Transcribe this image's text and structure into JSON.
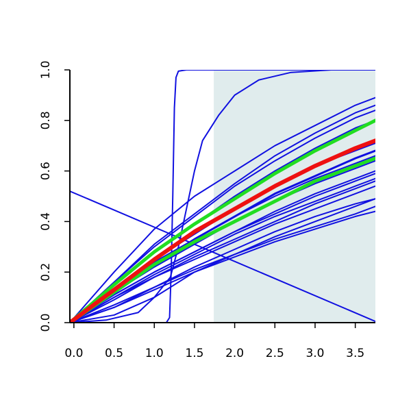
{
  "chart_data": {
    "type": "line",
    "title": "",
    "xlabel": "",
    "ylabel": "",
    "xlim": [
      -0.05,
      3.75
    ],
    "ylim": [
      0,
      1
    ],
    "x_ticks": [
      0,
      0.5,
      1,
      1.5,
      2,
      2.5,
      3,
      3.5
    ],
    "x_tick_labels": [
      "0.0",
      "0.5",
      "1.0",
      "1.5",
      "2.0",
      "2.5",
      "3.0",
      "3.5"
    ],
    "y_ticks": [
      0,
      0.2,
      0.4,
      0.6,
      0.8,
      1
    ],
    "y_tick_labels": [
      "0.0",
      "0.2",
      "0.4",
      "0.6",
      "0.8",
      "1.0"
    ],
    "shaded_region": {
      "x_from": 1.74,
      "x_to": 3.75,
      "color": "#e0eced"
    },
    "colors": {
      "blue": "#1010e0",
      "red": "#ee1111",
      "green": "#22dd22",
      "axis": "#000000"
    },
    "series": [
      {
        "color": "blue",
        "width": 2,
        "points": [
          [
            -0.05,
            0
          ],
          [
            0.5,
            0.12
          ],
          [
            1.0,
            0.22
          ],
          [
            1.5,
            0.31
          ],
          [
            2.0,
            0.4
          ],
          [
            2.5,
            0.48
          ],
          [
            3.0,
            0.55
          ],
          [
            3.5,
            0.61
          ],
          [
            3.75,
            0.64
          ]
        ]
      },
      {
        "color": "blue",
        "width": 2,
        "points": [
          [
            -0.05,
            0
          ],
          [
            0.5,
            0.13
          ],
          [
            1.0,
            0.24
          ],
          [
            1.5,
            0.33
          ],
          [
            2.0,
            0.42
          ],
          [
            2.5,
            0.5
          ],
          [
            3.0,
            0.57
          ],
          [
            3.5,
            0.63
          ],
          [
            3.75,
            0.66
          ]
        ]
      },
      {
        "color": "blue",
        "width": 3,
        "points": [
          [
            -0.05,
            0
          ],
          [
            0.5,
            0.12
          ],
          [
            1.0,
            0.23
          ],
          [
            1.5,
            0.33
          ],
          [
            2.0,
            0.42
          ],
          [
            2.5,
            0.51
          ],
          [
            3.0,
            0.58
          ],
          [
            3.5,
            0.65
          ],
          [
            3.75,
            0.68
          ]
        ]
      },
      {
        "color": "blue",
        "width": 2,
        "points": [
          [
            -0.05,
            0
          ],
          [
            0.5,
            0.13
          ],
          [
            1.0,
            0.25
          ],
          [
            1.5,
            0.35
          ],
          [
            2.0,
            0.45
          ],
          [
            2.5,
            0.54
          ],
          [
            3.0,
            0.62
          ],
          [
            3.5,
            0.68
          ],
          [
            3.75,
            0.71
          ]
        ]
      },
      {
        "color": "blue",
        "width": 2,
        "points": [
          [
            -0.05,
            0
          ],
          [
            0.5,
            0.15
          ],
          [
            1.0,
            0.28
          ],
          [
            1.5,
            0.39
          ],
          [
            2.0,
            0.5
          ],
          [
            2.5,
            0.6
          ],
          [
            3.0,
            0.69
          ],
          [
            3.5,
            0.77
          ],
          [
            3.75,
            0.8
          ]
        ]
      },
      {
        "color": "blue",
        "width": 2,
        "points": [
          [
            -0.05,
            0
          ],
          [
            0.5,
            0.16
          ],
          [
            1.0,
            0.3
          ],
          [
            1.5,
            0.42
          ],
          [
            2.0,
            0.54
          ],
          [
            2.5,
            0.64
          ],
          [
            3.0,
            0.73
          ],
          [
            3.5,
            0.81
          ],
          [
            3.75,
            0.84
          ]
        ]
      },
      {
        "color": "blue",
        "width": 2,
        "points": [
          [
            -0.05,
            0
          ],
          [
            0.5,
            0.16
          ],
          [
            1.0,
            0.31
          ],
          [
            1.5,
            0.43
          ],
          [
            2.0,
            0.55
          ],
          [
            2.5,
            0.66
          ],
          [
            3.0,
            0.75
          ],
          [
            3.5,
            0.83
          ],
          [
            3.75,
            0.86
          ]
        ]
      },
      {
        "color": "blue",
        "width": 2,
        "points": [
          [
            -0.05,
            0
          ],
          [
            0.5,
            0.2
          ],
          [
            1.0,
            0.37
          ],
          [
            1.5,
            0.5
          ],
          [
            2.0,
            0.6
          ],
          [
            2.5,
            0.7
          ],
          [
            3.0,
            0.78
          ],
          [
            3.5,
            0.86
          ],
          [
            3.75,
            0.89
          ]
        ]
      },
      {
        "color": "blue",
        "width": 2,
        "points": [
          [
            -0.05,
            0
          ],
          [
            0.5,
            0.11
          ],
          [
            1.0,
            0.2
          ],
          [
            1.5,
            0.28
          ],
          [
            2.0,
            0.36
          ],
          [
            2.5,
            0.43
          ],
          [
            3.0,
            0.5
          ],
          [
            3.5,
            0.56
          ],
          [
            3.75,
            0.59
          ]
        ]
      },
      {
        "color": "blue",
        "width": 2,
        "points": [
          [
            -0.05,
            0
          ],
          [
            0.5,
            0.11
          ],
          [
            1.0,
            0.2
          ],
          [
            1.5,
            0.28
          ],
          [
            2.0,
            0.36
          ],
          [
            2.5,
            0.44
          ],
          [
            3.0,
            0.51
          ],
          [
            3.5,
            0.57
          ],
          [
            3.75,
            0.6
          ]
        ]
      },
      {
        "color": "blue",
        "width": 2,
        "points": [
          [
            -0.05,
            0
          ],
          [
            0.5,
            0.1
          ],
          [
            1.0,
            0.19
          ],
          [
            1.5,
            0.27
          ],
          [
            2.0,
            0.35
          ],
          [
            2.5,
            0.42
          ],
          [
            3.0,
            0.48
          ],
          [
            3.5,
            0.54
          ],
          [
            3.75,
            0.57
          ]
        ]
      },
      {
        "color": "blue",
        "width": 2,
        "points": [
          [
            -0.05,
            0
          ],
          [
            0.5,
            0.1
          ],
          [
            1.0,
            0.18
          ],
          [
            1.5,
            0.26
          ],
          [
            2.0,
            0.33
          ],
          [
            2.5,
            0.4
          ],
          [
            3.0,
            0.47
          ],
          [
            3.5,
            0.53
          ],
          [
            3.75,
            0.56
          ]
        ]
      },
      {
        "color": "blue",
        "width": 2,
        "points": [
          [
            -0.05,
            0
          ],
          [
            0.5,
            0.09
          ],
          [
            1.0,
            0.18
          ],
          [
            1.5,
            0.25
          ],
          [
            2.0,
            0.32
          ],
          [
            2.5,
            0.39
          ],
          [
            3.0,
            0.45
          ],
          [
            3.5,
            0.51
          ],
          [
            3.75,
            0.54
          ]
        ]
      },
      {
        "color": "blue",
        "width": 2,
        "points": [
          [
            -0.05,
            0
          ],
          [
            0.5,
            0.07
          ],
          [
            1.0,
            0.14
          ],
          [
            1.5,
            0.21
          ],
          [
            2.0,
            0.27
          ],
          [
            2.5,
            0.33
          ],
          [
            3.0,
            0.38
          ],
          [
            3.5,
            0.43
          ],
          [
            3.75,
            0.46
          ]
        ]
      },
      {
        "color": "blue",
        "width": 2,
        "points": [
          [
            -0.05,
            0
          ],
          [
            0.5,
            0.06
          ],
          [
            1.0,
            0.13
          ],
          [
            1.5,
            0.2
          ],
          [
            2.0,
            0.26
          ],
          [
            2.5,
            0.32
          ],
          [
            3.0,
            0.37
          ],
          [
            3.5,
            0.42
          ],
          [
            3.75,
            0.44
          ]
        ]
      },
      {
        "color": "blue",
        "width": 2,
        "points": [
          [
            -0.05,
            0
          ],
          [
            0.5,
            0.06
          ],
          [
            1.0,
            0.14
          ],
          [
            1.5,
            0.22
          ],
          [
            2.0,
            0.29
          ],
          [
            2.5,
            0.36
          ],
          [
            3.0,
            0.42
          ],
          [
            3.5,
            0.47
          ],
          [
            3.75,
            0.49
          ]
        ]
      },
      {
        "color": "blue",
        "width": 2,
        "points": [
          [
            -0.05,
            0
          ],
          [
            0.5,
            0.03
          ],
          [
            1.0,
            0.1
          ],
          [
            1.5,
            0.2
          ],
          [
            2.0,
            0.27
          ],
          [
            2.5,
            0.34
          ],
          [
            3.0,
            0.4
          ],
          [
            3.5,
            0.46
          ],
          [
            3.75,
            0.49
          ]
        ]
      },
      {
        "color": "blue",
        "width": 2,
        "points": [
          [
            -0.05,
            0
          ],
          [
            0.4,
            0.01
          ],
          [
            0.8,
            0.04
          ],
          [
            1.0,
            0.1
          ],
          [
            1.2,
            0.18
          ],
          [
            1.3,
            0.3
          ],
          [
            1.4,
            0.45
          ],
          [
            1.5,
            0.6
          ],
          [
            1.6,
            0.72
          ],
          [
            1.8,
            0.82
          ],
          [
            2.0,
            0.9
          ],
          [
            2.3,
            0.96
          ],
          [
            2.7,
            0.99
          ],
          [
            3.2,
            1.0
          ],
          [
            3.75,
            1.0
          ]
        ]
      },
      {
        "color": "blue",
        "width": 2,
        "points": [
          [
            -0.05,
            0
          ],
          [
            1.15,
            0
          ],
          [
            1.19,
            0.02
          ],
          [
            1.21,
            0.2
          ],
          [
            1.23,
            0.5
          ],
          [
            1.25,
            0.85
          ],
          [
            1.27,
            0.97
          ],
          [
            1.3,
            0.995
          ],
          [
            1.4,
            1.0
          ],
          [
            3.75,
            1.0
          ]
        ]
      },
      {
        "color": "blue",
        "width": 2,
        "points": [
          [
            -0.05,
            0.52
          ],
          [
            3.75,
            0.005
          ]
        ]
      },
      {
        "color": "green",
        "width": 5,
        "points": [
          [
            -0.05,
            0
          ],
          [
            0.5,
            0.15
          ],
          [
            1.0,
            0.28
          ],
          [
            1.5,
            0.39
          ],
          [
            2.0,
            0.49
          ],
          [
            2.5,
            0.59
          ],
          [
            3.0,
            0.68
          ],
          [
            3.5,
            0.76
          ],
          [
            3.75,
            0.8
          ]
        ]
      },
      {
        "color": "green",
        "width": 5,
        "points": [
          [
            -0.05,
            0
          ],
          [
            0.5,
            0.12
          ],
          [
            1.0,
            0.23
          ],
          [
            1.5,
            0.32
          ],
          [
            2.0,
            0.4
          ],
          [
            2.5,
            0.48
          ],
          [
            3.0,
            0.56
          ],
          [
            3.5,
            0.62
          ],
          [
            3.75,
            0.65
          ]
        ]
      },
      {
        "color": "red",
        "width": 6,
        "points": [
          [
            -0.05,
            0
          ],
          [
            0.5,
            0.13
          ],
          [
            1.0,
            0.25
          ],
          [
            1.5,
            0.36
          ],
          [
            2.0,
            0.45
          ],
          [
            2.5,
            0.54
          ],
          [
            3.0,
            0.62
          ],
          [
            3.5,
            0.69
          ],
          [
            3.75,
            0.72
          ]
        ]
      }
    ]
  }
}
